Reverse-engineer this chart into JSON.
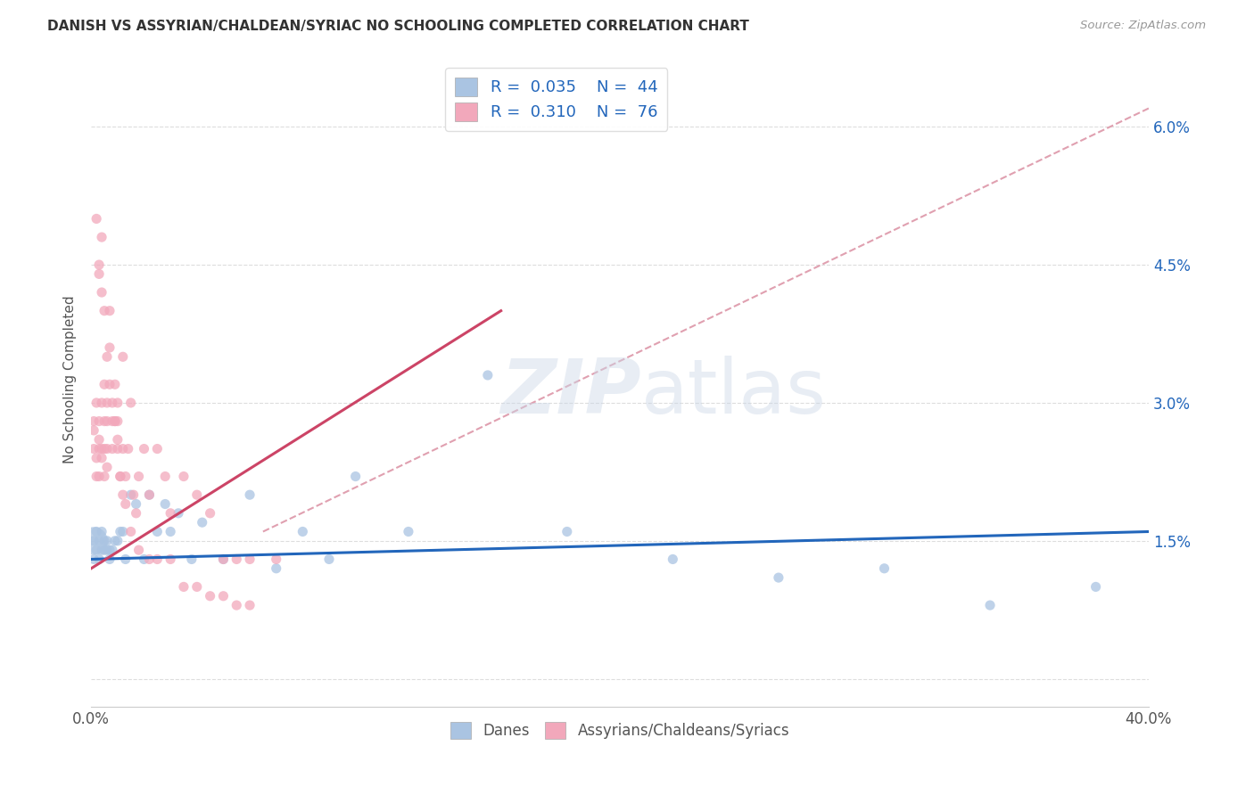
{
  "title": "DANISH VS ASSYRIAN/CHALDEAN/SYRIAC NO SCHOOLING COMPLETED CORRELATION CHART",
  "source": "Source: ZipAtlas.com",
  "ylabel": "No Schooling Completed",
  "yticks": [
    0.0,
    0.015,
    0.03,
    0.045,
    0.06
  ],
  "ytick_labels": [
    "",
    "1.5%",
    "3.0%",
    "4.5%",
    "6.0%"
  ],
  "xlim": [
    0.0,
    0.4
  ],
  "ylim": [
    -0.003,
    0.068
  ],
  "watermark": "ZIPatlas",
  "danes_color": "#aac4e2",
  "assyrians_color": "#f2a8bb",
  "danes_line_color": "#2266bb",
  "assyrians_line_color": "#cc4466",
  "dashed_line_color": "#e0a0b0",
  "danes_line": [
    0.0,
    0.013,
    0.4,
    0.016
  ],
  "assyrians_line": [
    0.0,
    0.012,
    0.155,
    0.04
  ],
  "dashed_line": [
    0.065,
    0.016,
    0.4,
    0.062
  ],
  "danes_points_x": [
    0.001,
    0.001,
    0.002,
    0.002,
    0.003,
    0.003,
    0.004,
    0.004,
    0.005,
    0.005,
    0.006,
    0.006,
    0.007,
    0.007,
    0.008,
    0.009,
    0.01,
    0.011,
    0.012,
    0.013,
    0.015,
    0.017,
    0.02,
    0.022,
    0.025,
    0.028,
    0.03,
    0.033,
    0.038,
    0.042,
    0.05,
    0.06,
    0.07,
    0.08,
    0.09,
    0.1,
    0.12,
    0.15,
    0.18,
    0.22,
    0.26,
    0.3,
    0.34,
    0.38
  ],
  "danes_points_y": [
    0.013,
    0.015,
    0.016,
    0.014,
    0.015,
    0.013,
    0.016,
    0.014,
    0.015,
    0.014,
    0.015,
    0.014,
    0.014,
    0.013,
    0.014,
    0.015,
    0.015,
    0.016,
    0.016,
    0.013,
    0.02,
    0.019,
    0.013,
    0.02,
    0.016,
    0.019,
    0.016,
    0.018,
    0.013,
    0.017,
    0.013,
    0.02,
    0.012,
    0.016,
    0.013,
    0.022,
    0.016,
    0.033,
    0.016,
    0.013,
    0.011,
    0.012,
    0.008,
    0.01
  ],
  "assyrians_points_x": [
    0.001,
    0.001,
    0.001,
    0.002,
    0.002,
    0.002,
    0.003,
    0.003,
    0.003,
    0.003,
    0.004,
    0.004,
    0.004,
    0.005,
    0.005,
    0.005,
    0.005,
    0.006,
    0.006,
    0.006,
    0.006,
    0.007,
    0.007,
    0.008,
    0.008,
    0.009,
    0.009,
    0.01,
    0.01,
    0.01,
    0.011,
    0.012,
    0.012,
    0.013,
    0.014,
    0.015,
    0.016,
    0.017,
    0.018,
    0.02,
    0.022,
    0.025,
    0.028,
    0.03,
    0.035,
    0.04,
    0.045,
    0.05,
    0.055,
    0.06,
    0.07,
    0.003,
    0.004,
    0.005,
    0.006,
    0.007,
    0.008,
    0.009,
    0.01,
    0.011,
    0.012,
    0.013,
    0.015,
    0.018,
    0.022,
    0.025,
    0.03,
    0.035,
    0.04,
    0.045,
    0.05,
    0.055,
    0.06,
    0.002,
    0.003,
    0.004
  ],
  "assyrians_points_y": [
    0.028,
    0.027,
    0.025,
    0.03,
    0.024,
    0.022,
    0.028,
    0.026,
    0.025,
    0.022,
    0.03,
    0.025,
    0.024,
    0.032,
    0.028,
    0.025,
    0.022,
    0.03,
    0.028,
    0.025,
    0.023,
    0.04,
    0.036,
    0.028,
    0.025,
    0.032,
    0.028,
    0.03,
    0.028,
    0.025,
    0.022,
    0.035,
    0.025,
    0.022,
    0.025,
    0.03,
    0.02,
    0.018,
    0.022,
    0.025,
    0.02,
    0.025,
    0.022,
    0.018,
    0.022,
    0.02,
    0.018,
    0.013,
    0.013,
    0.013,
    0.013,
    0.044,
    0.048,
    0.04,
    0.035,
    0.032,
    0.03,
    0.028,
    0.026,
    0.022,
    0.02,
    0.019,
    0.016,
    0.014,
    0.013,
    0.013,
    0.013,
    0.01,
    0.01,
    0.009,
    0.009,
    0.008,
    0.008,
    0.05,
    0.045,
    0.042
  ]
}
